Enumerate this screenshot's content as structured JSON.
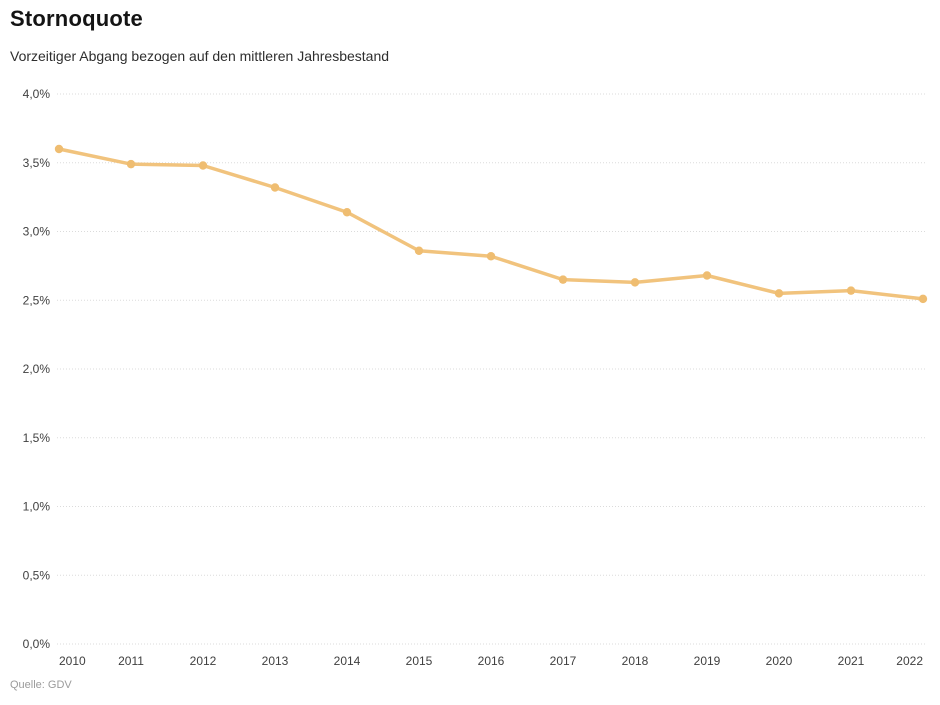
{
  "page": {
    "title": "Stornoquote",
    "subtitle": "Vorzeitiger Abgang bezogen auf den mittleren Jahresbestand",
    "source": "Quelle: GDV"
  },
  "colors": {
    "line": "#F1C37D",
    "point": "#EFBD71",
    "grid": "#DBDBDB",
    "axis_text": "#404040",
    "title_text": "#141414",
    "subtitle_text": "#2E2E2E",
    "source_text": "#9B9B9B",
    "background": "#FFFFFF"
  },
  "chart_data": {
    "type": "line",
    "title": "Stornoquote",
    "subtitle": "Vorzeitiger Abgang bezogen auf den mittleren Jahresbestand",
    "source": "Quelle: GDV",
    "x": [
      2010,
      2011,
      2012,
      2013,
      2014,
      2015,
      2016,
      2017,
      2018,
      2019,
      2020,
      2021,
      2022
    ],
    "x_labels": [
      "2010",
      "2011",
      "2012",
      "2013",
      "2014",
      "2015",
      "2016",
      "2017",
      "2018",
      "2019",
      "2020",
      "2021",
      "2022"
    ],
    "series": [
      {
        "name": "Stornoquote",
        "values": [
          3.6,
          3.49,
          3.48,
          3.32,
          3.14,
          2.86,
          2.82,
          2.65,
          2.63,
          2.68,
          2.55,
          2.57,
          2.51
        ]
      }
    ],
    "xlabel": "",
    "ylabel": "",
    "ylim": [
      0,
      4
    ],
    "ytick_step": 0.5,
    "ytick_labels": [
      "0,0%",
      "0,5%",
      "1,0%",
      "1,5%",
      "2,0%",
      "2,5%",
      "3,0%",
      "3,5%",
      "4,0%"
    ],
    "grid": "horizontal-dotted",
    "legend": "none",
    "marker": "circle"
  }
}
